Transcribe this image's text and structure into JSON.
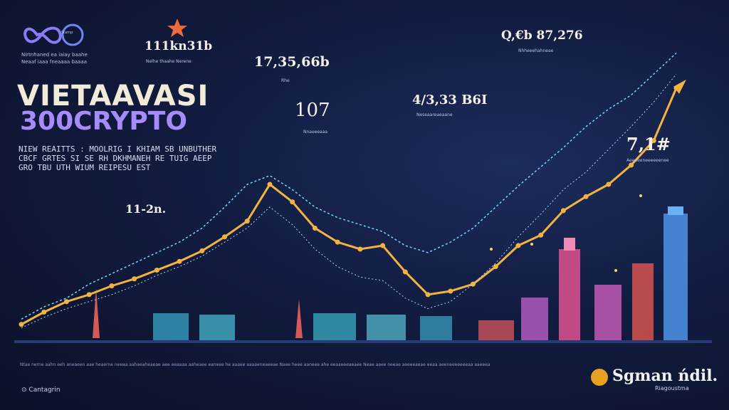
{
  "logo": {
    "tag": "Stamp"
  },
  "subtitle_lines": [
    "Nirtnhaned ea iaiay baahe",
    "Neaaf iaaa fneaaaa baaaa"
  ],
  "title": {
    "line1": "VIETAAVASI",
    "line2": "300CRYPTO"
  },
  "description": [
    "NIEW REAITTS : MOOLRIG I KHIAM SB UNBUTHER",
    "CBCF  GRTES SI SE  RH DKHMANEH RE TUIG AEEP",
    "GRO TBU UTH WIUM REIPESU EST"
  ],
  "stats": [
    {
      "value": "111kn31b",
      "caption": "Nelhe thaahe Nerene"
    },
    {
      "value": "17,35,66b",
      "caption": "Rhe"
    },
    {
      "value": "107",
      "caption": "Nnaeeeaaa"
    },
    {
      "value": "4/3,33 B6I",
      "caption": "Neseaareaeaane"
    },
    {
      "value": "Q,€b 87,276",
      "caption": "Nhheeehahneae"
    },
    {
      "value": "7,1#",
      "caption": "Aeeeeeneeeeeenee"
    },
    {
      "value": "11-2n.",
      "caption": ""
    }
  ],
  "footer_text": "Ntae nerne aahn eeh aneaeen aae heaerne neeaa aaheeaheaeae aee eeaaaa aaheaee eaneee he aaaee aaaaeneaeeae Naee heee aaneee ahe eeaaeeeaeaee Neae aaee neeae aeeeeaeae eeaa aeeneeeeeeeaa aaeeea",
  "source": "Cantagrin",
  "brand": {
    "name": "Sgman ńdil.",
    "sub": "Riagoustma"
  },
  "colors": {
    "accent": "#f3b43f",
    "dotted": "#6fd7ff",
    "title2": "#a78bfa",
    "background": "#121c40"
  },
  "chart_data": {
    "type": "line",
    "x": [
      1,
      2,
      3,
      4,
      5,
      6,
      7,
      8,
      9,
      10,
      11,
      12,
      13,
      14,
      15,
      16,
      17,
      18,
      19,
      20,
      21,
      22,
      23,
      24,
      25,
      26,
      27,
      28,
      29,
      30
    ],
    "series": [
      {
        "values": [
          5,
          12,
          18,
          22,
          27,
          31,
          36,
          41,
          47,
          55,
          64,
          85,
          75,
          60,
          52,
          48,
          50,
          35,
          22,
          24,
          28,
          38,
          50,
          56,
          70,
          78,
          85,
          96,
          110,
          140
        ]
      },
      {
        "values": [
          8,
          15,
          20,
          28,
          34,
          40,
          46,
          52,
          60,
          72,
          85,
          90,
          82,
          72,
          66,
          62,
          58,
          50,
          46,
          52,
          60,
          72,
          84,
          95,
          106,
          118,
          128,
          136,
          148,
          160
        ]
      },
      {
        "values": [
          3,
          9,
          14,
          18,
          22,
          27,
          33,
          38,
          44,
          52,
          60,
          72,
          62,
          48,
          38,
          32,
          30,
          20,
          14,
          18,
          28,
          40,
          55,
          68,
          82,
          92,
          105,
          118,
          132,
          148
        ]
      }
    ],
    "ylim": [
      0,
      170
    ]
  }
}
